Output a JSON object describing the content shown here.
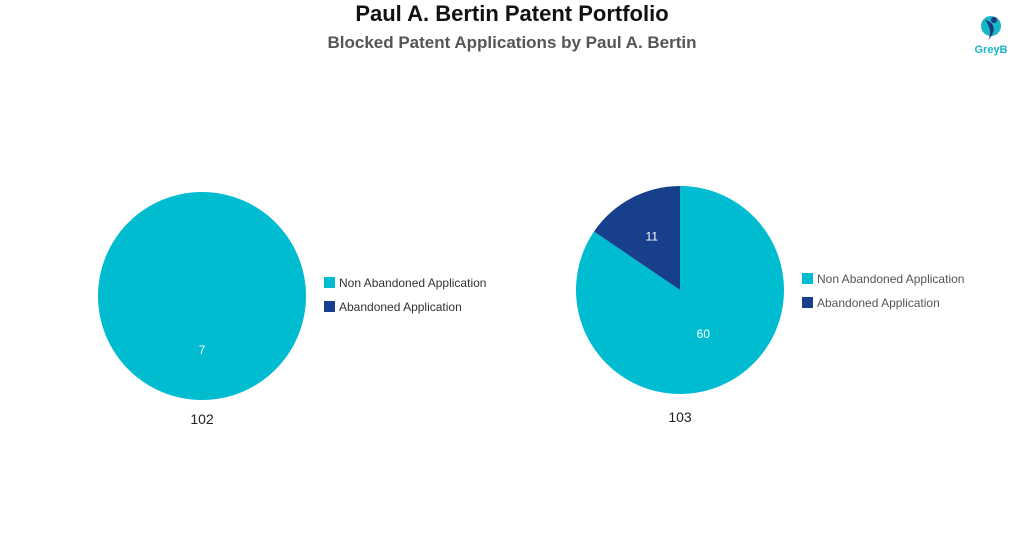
{
  "header": {
    "title": "Paul A. Bertin Patent Portfolio",
    "subtitle": "Blocked Patent Applications by Paul A. Bertin"
  },
  "logo": {
    "text": "GreyB"
  },
  "colors": {
    "non_abandoned": "#00bcd0",
    "abandoned": "#173f8c",
    "logo_teal": "#18b6c9",
    "logo_navy": "#1e3a7b"
  },
  "chart_data": [
    {
      "type": "pie",
      "caption": "102",
      "categories": [
        "Non Abandoned Application",
        "Abandoned Application"
      ],
      "values": [
        7,
        0
      ],
      "data_labels": [
        "7",
        ""
      ],
      "legend_position": "right"
    },
    {
      "type": "pie",
      "caption": "103",
      "categories": [
        "Non Abandoned Application",
        "Abandoned Application"
      ],
      "values": [
        60,
        11
      ],
      "data_labels": [
        "60",
        "11"
      ],
      "legend_position": "right"
    }
  ]
}
